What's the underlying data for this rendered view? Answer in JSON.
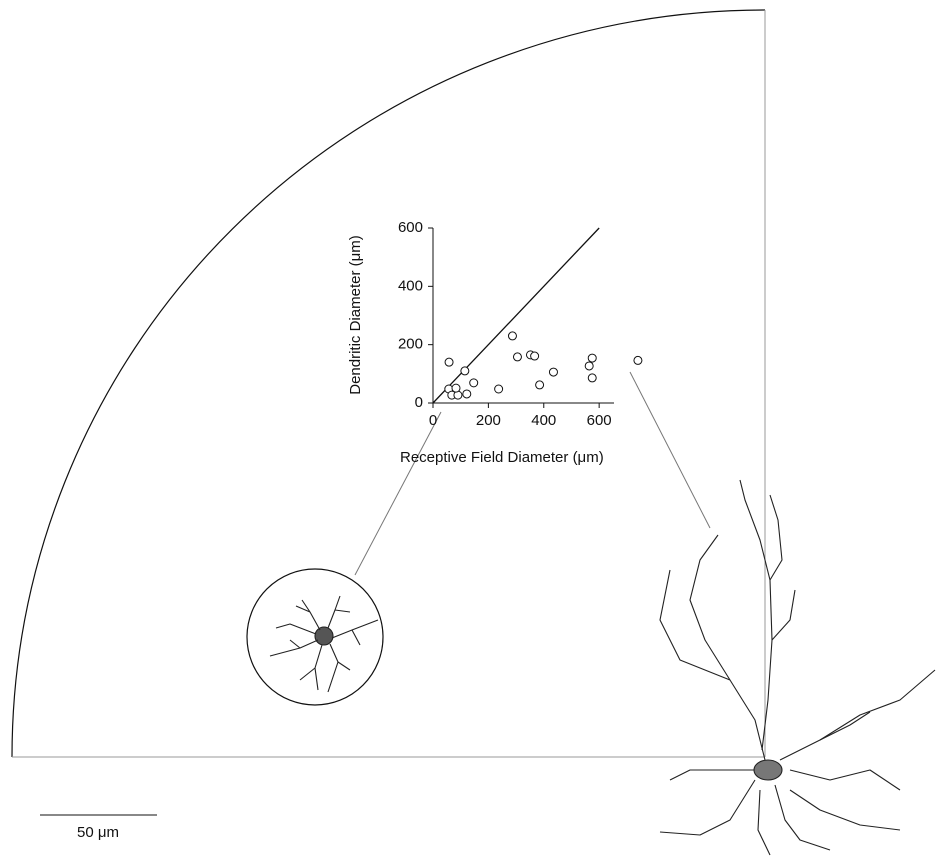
{
  "chart_data": {
    "type": "scatter",
    "xlabel": "Receptive Field Diameter (μm)",
    "ylabel": "Dendritic Diameter (μm)",
    "x": [
      58,
      57,
      68,
      90,
      83,
      115,
      122,
      147,
      237,
      287,
      305,
      352,
      367,
      385,
      435,
      564,
      575,
      575,
      740
    ],
    "y": [
      140,
      48,
      27,
      27,
      51,
      110,
      31,
      69,
      48,
      230,
      158,
      165,
      161,
      62,
      106,
      127,
      154,
      86,
      146
    ],
    "reference_line": {
      "x": [
        0,
        600
      ],
      "y": [
        0,
        600
      ]
    },
    "xlim": [
      0,
      650
    ],
    "ylim": [
      0,
      600
    ],
    "xticks": [
      0,
      200,
      400,
      600
    ],
    "yticks": [
      0,
      200,
      400,
      600
    ],
    "scale_bar_label": "50 μm"
  }
}
